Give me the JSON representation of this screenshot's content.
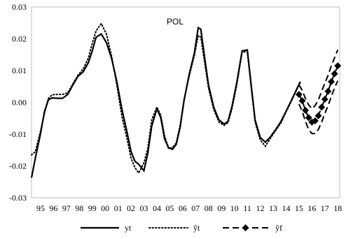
{
  "chart_data": {
    "type": "line",
    "title": "POL",
    "xlabel": "",
    "ylabel": "",
    "ylim": [
      -0.03,
      0.03
    ],
    "xlim": [
      1994.3,
      2018.15
    ],
    "grid": false,
    "legend_position": "bottom",
    "y_ticks": [
      -0.03,
      -0.02,
      -0.01,
      0.0,
      0.01,
      0.02,
      0.03
    ],
    "y_tick_labels": [
      "-0.03",
      "-0.02",
      "-0.01",
      "0.00",
      "0.01",
      "0.02",
      "0.03"
    ],
    "x_ticks": [
      1995,
      1996,
      1997,
      1998,
      1999,
      2000,
      2001,
      2002,
      2003,
      2004,
      2005,
      2006,
      2007,
      2008,
      2009,
      2010,
      2011,
      2012,
      2013,
      2014,
      2015,
      2016,
      2017,
      2018
    ],
    "x_tick_labels": [
      "95",
      "96",
      "97",
      "98",
      "99",
      "00",
      "01",
      "02",
      "03",
      "04",
      "05",
      "06",
      "07",
      "08",
      "09",
      "10",
      "11",
      "12",
      "13",
      "14",
      "15",
      "16",
      "17",
      "18"
    ],
    "series": [
      {
        "name": "yt",
        "style": "solid",
        "color": "#000000",
        "x": [
          1994.3,
          1994.6,
          1995.0,
          1995.3,
          1995.6,
          1995.9,
          1996.3,
          1996.7,
          1997.1,
          1997.5,
          1997.9,
          1998.3,
          1998.7,
          1999.0,
          1999.3,
          1999.7,
          2000.1,
          2000.5,
          2000.9,
          2001.3,
          2001.7,
          2002.0,
          2002.3,
          2002.6,
          2003.0,
          2003.3,
          2003.6,
          2004.0,
          2004.3,
          2004.6,
          2004.9,
          2005.2,
          2005.5,
          2005.8,
          2006.1,
          2006.5,
          2006.9,
          2007.2,
          2007.4,
          2007.7,
          2008.0,
          2008.4,
          2008.8,
          2009.2,
          2009.5,
          2009.8,
          2010.2,
          2010.6,
          2011.0,
          2011.3,
          2011.6,
          2012.0,
          2012.4,
          2012.8,
          2013.2,
          2013.6,
          2014.0,
          2014.4,
          2014.8,
          2015.1
        ],
        "y": [
          -0.0237,
          -0.0175,
          -0.0098,
          -0.003,
          0.0008,
          0.0014,
          0.0013,
          0.0013,
          0.0025,
          0.0055,
          0.0082,
          0.0096,
          0.0125,
          0.0162,
          0.0205,
          0.0215,
          0.0188,
          0.0138,
          0.0065,
          -0.0022,
          -0.0095,
          -0.0155,
          -0.0185,
          -0.0195,
          -0.0215,
          -0.016,
          -0.0075,
          -0.002,
          -0.0048,
          -0.0115,
          -0.0142,
          -0.0148,
          -0.0132,
          -0.0078,
          0.0005,
          0.0088,
          0.0155,
          0.0235,
          0.023,
          0.014,
          0.0055,
          -0.0015,
          -0.0055,
          -0.0068,
          -0.006,
          -0.0015,
          0.0065,
          0.0162,
          0.0165,
          0.0055,
          -0.0055,
          -0.011,
          -0.0125,
          -0.0108,
          -0.0085,
          -0.006,
          -0.0028,
          0.0005,
          0.004,
          0.0065
        ]
      },
      {
        "name": "ŷt",
        "style": "dotted",
        "color": "#000000",
        "x": [
          1994.3,
          1994.6,
          1995.0,
          1995.3,
          1995.6,
          1995.9,
          1996.3,
          1996.7,
          1997.1,
          1997.5,
          1997.9,
          1998.3,
          1998.7,
          1999.0,
          1999.3,
          1999.7,
          2000.1,
          2000.5,
          2000.9,
          2001.3,
          2001.7,
          2002.0,
          2002.3,
          2002.6,
          2003.0,
          2003.3,
          2003.6,
          2004.0,
          2004.3,
          2004.6,
          2004.9,
          2005.2,
          2005.5,
          2005.8,
          2006.1,
          2006.5,
          2006.9,
          2007.2,
          2007.4,
          2007.7,
          2008.0,
          2008.4,
          2008.8,
          2009.2,
          2009.5,
          2009.8,
          2010.2,
          2010.6,
          2011.0,
          2011.3,
          2011.6,
          2012.0,
          2012.4,
          2012.8,
          2013.2,
          2013.6,
          2014.0,
          2014.4,
          2014.8,
          2015.1
        ],
        "y": [
          -0.0165,
          -0.0155,
          -0.009,
          -0.0035,
          0.0012,
          0.0024,
          0.0025,
          0.0025,
          0.003,
          0.0058,
          0.0086,
          0.0105,
          0.014,
          0.0185,
          0.0225,
          0.0248,
          0.0215,
          0.0145,
          0.0055,
          -0.0045,
          -0.0115,
          -0.0175,
          -0.0205,
          -0.0222,
          -0.019,
          -0.0145,
          -0.0055,
          -0.0015,
          -0.004,
          -0.0105,
          -0.0145,
          -0.0142,
          -0.0128,
          -0.0072,
          0.0008,
          0.0082,
          0.0148,
          0.021,
          0.0205,
          0.0125,
          0.0045,
          -0.0022,
          -0.0062,
          -0.0072,
          -0.0064,
          -0.0022,
          0.0058,
          0.0158,
          0.016,
          0.0048,
          -0.0062,
          -0.0118,
          -0.0138,
          -0.0112,
          -0.0088,
          -0.0065,
          -0.003,
          0.0003,
          0.0038,
          0.0062
        ]
      },
      {
        "name": "ŷf",
        "style": "dashed",
        "color": "#000000",
        "x": [
          2015.0,
          2015.25,
          2015.5,
          2015.75,
          2016.0,
          2016.25,
          2016.5,
          2016.75,
          2017.0,
          2017.25,
          2017.5,
          2017.75,
          2018.0
        ],
        "y": [
          0.0025,
          0.0005,
          -0.0025,
          -0.0048,
          -0.0062,
          -0.0058,
          -0.0042,
          -0.0015,
          0.001,
          0.0035,
          0.0065,
          0.009,
          0.0115
        ],
        "upper": [
          0.0055,
          0.0038,
          0.0012,
          -0.0008,
          -0.002,
          -0.001,
          0.0008,
          0.0035,
          0.006,
          0.0085,
          0.0115,
          0.014,
          0.0165
        ],
        "lower": [
          -0.0005,
          -0.0028,
          -0.006,
          -0.0085,
          -0.0098,
          -0.0098,
          -0.0085,
          -0.0062,
          -0.0035,
          -0.001,
          0.0018,
          0.0045,
          0.0068
        ]
      }
    ]
  }
}
